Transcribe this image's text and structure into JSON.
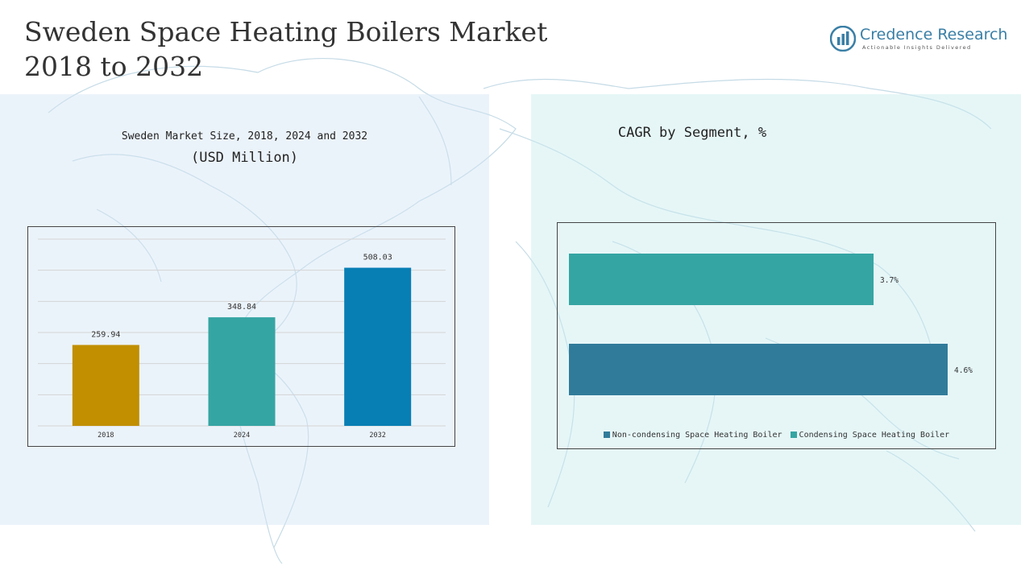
{
  "page": {
    "title_line1": "Sweden Space Heating Boilers Market",
    "title_line2": "2018 to 2032"
  },
  "logo": {
    "name": "Credence Research",
    "tagline": "Actionable Insights Delivered",
    "icon": "bar-chart-logo-icon"
  },
  "chart_data": [
    {
      "type": "bar",
      "title": "Sweden Market Size, 2018, 2024 and 2032",
      "subtitle": "(USD Million)",
      "categories": [
        "2018",
        "2024",
        "2032"
      ],
      "values": [
        259.94,
        348.84,
        508.03
      ],
      "value_labels": [
        "259.94",
        "348.84",
        "508.03"
      ],
      "colors": [
        "#c18f00",
        "#35a5a3",
        "#087fb4"
      ],
      "ylim": [
        0,
        600
      ],
      "grid": true
    },
    {
      "type": "bar",
      "orientation": "horizontal",
      "title": "CAGR by Segment, %",
      "series": [
        {
          "name": "Condensing Space Heating Boiler",
          "value": 3.7,
          "label": "3.7%",
          "color": "#35a5a3"
        },
        {
          "name": "Non-condensing Space Heating Boiler",
          "value": 4.6,
          "label": "4.6%",
          "color": "#317b9a"
        }
      ],
      "xlim": [
        0,
        5
      ],
      "legend": {
        "position": "bottom",
        "items": [
          {
            "label": "Non-condensing Space Heating Boiler",
            "color": "#317b9a"
          },
          {
            "label": "Condensing Space Heating Boiler",
            "color": "#35a5a3"
          }
        ]
      }
    }
  ]
}
